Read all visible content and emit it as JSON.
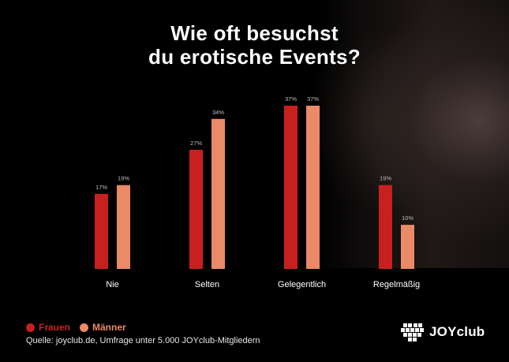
{
  "title_line1": "Wie oft besuchst",
  "title_line2": "du erotische Events?",
  "legend": [
    {
      "label": "Frauen",
      "color": "#c8201f"
    },
    {
      "label": "Männer",
      "color": "#ea8a66"
    }
  ],
  "source": "Quelle: joyclub.de, Umfrage unter 5.000 JOYclub-Mitgliedern",
  "brand": {
    "name": "JOYclub",
    "logo_icon": "heart-logo-icon"
  },
  "chart_data": {
    "type": "bar",
    "categories": [
      "Nie",
      "Selten",
      "Gelegentlich",
      "Regelmäßig"
    ],
    "series": [
      {
        "name": "Frauen",
        "values": [
          17,
          27,
          37,
          19
        ],
        "color": "#c8201f"
      },
      {
        "name": "Männer",
        "values": [
          19,
          34,
          37,
          10
        ],
        "color": "#ea8a66"
      }
    ],
    "value_suffix": "%",
    "ylim": [
      0,
      37
    ],
    "grid": false,
    "legend_position": "bottom-left"
  }
}
